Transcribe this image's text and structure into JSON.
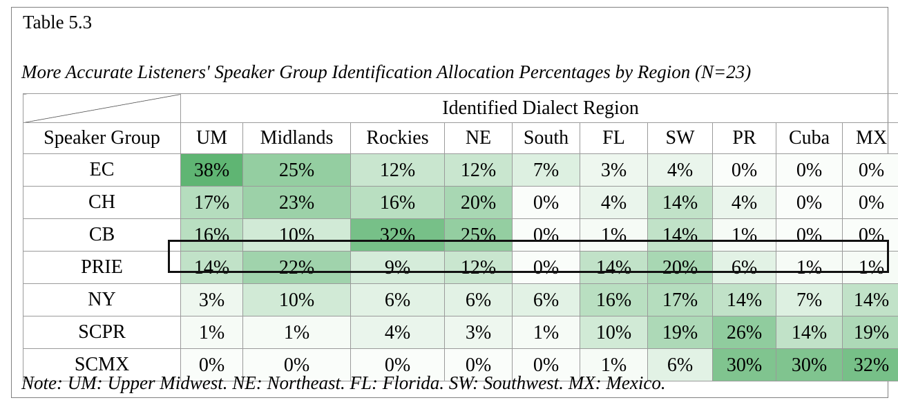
{
  "table_number": "Table 5.3",
  "title": "More Accurate Listeners' Speaker Group Identification Allocation Percentages by Region (N=23)",
  "group_header": "Identified Dialect Region",
  "row_header": "Speaker Group",
  "columns": [
    "UM",
    "Midlands",
    "Rockies",
    "NE",
    "South",
    "FL",
    "SW",
    "PR",
    "Cuba",
    "MX"
  ],
  "rows": [
    {
      "label": "EC",
      "values": [
        38,
        25,
        12,
        12,
        7,
        3,
        4,
        0,
        0,
        0
      ]
    },
    {
      "label": "CH",
      "values": [
        17,
        23,
        16,
        20,
        0,
        4,
        14,
        4,
        0,
        0
      ]
    },
    {
      "label": "CB",
      "values": [
        16,
        10,
        32,
        25,
        0,
        1,
        14,
        1,
        0,
        0
      ]
    },
    {
      "label": "PRIE",
      "values": [
        14,
        22,
        9,
        12,
        0,
        14,
        20,
        6,
        1,
        1
      ]
    },
    {
      "label": "NY",
      "values": [
        3,
        10,
        6,
        6,
        6,
        16,
        17,
        14,
        7,
        14
      ]
    },
    {
      "label": "SCPR",
      "values": [
        1,
        1,
        4,
        3,
        1,
        10,
        19,
        26,
        14,
        19
      ]
    },
    {
      "label": "SCMX",
      "values": [
        0,
        0,
        0,
        0,
        0,
        1,
        6,
        30,
        30,
        32
      ]
    }
  ],
  "highlighted_row": "PRIE",
  "heat_color_max": "#5fb573",
  "note": "Note: UM: Upper Midwest. NE: Northeast. FL: Florida. SW: Southwest. MX: Mexico."
}
